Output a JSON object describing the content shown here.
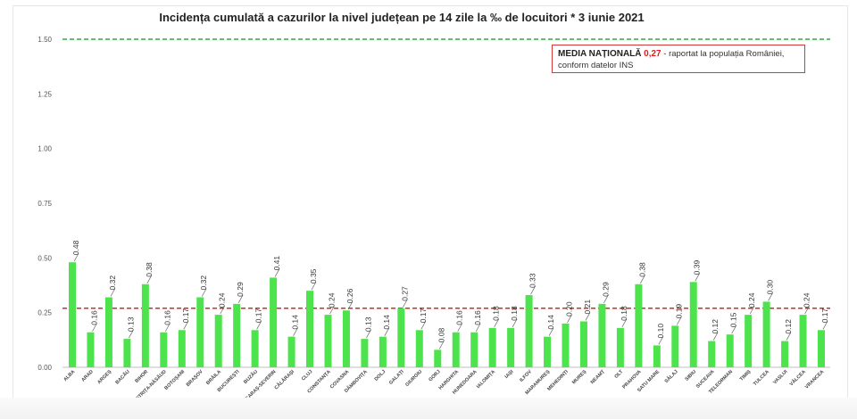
{
  "chart_data": {
    "type": "bar",
    "title": "Incidența cumulată a cazurilor la nivel județean pe 14 zile la ‰ de locuitori *  3 iunie 2021",
    "categories": [
      "ALBA",
      "ARAD",
      "ARGEȘ",
      "BACĂU",
      "BIHOR",
      "BISTRIȚA-NĂSĂUD",
      "BOTOȘANI",
      "BRAȘOV",
      "BRĂILA",
      "BUCUREȘTI",
      "BUZĂU",
      "CARAȘ-SEVERIN",
      "CĂLĂRAȘI",
      "CLUJ",
      "CONSTANȚA",
      "COVASNA",
      "DÂMBOVIȚA",
      "DOLJ",
      "GALAȚI",
      "GIURGIU",
      "GORJ",
      "HARGHITA",
      "HUNEDOARA",
      "IALOMIȚA",
      "IAȘI",
      "ILFOV",
      "MARAMUREȘ",
      "MEHEDINȚI",
      "MUREȘ",
      "NEAMȚ",
      "OLT",
      "PRAHOVA",
      "SATU MARE",
      "SĂLAJ",
      "SIBIU",
      "SUCEAVA",
      "TELEORMAN",
      "TIMIȘ",
      "TULCEA",
      "VASLUI",
      "VÂLCEA",
      "VRANCEA"
    ],
    "values": [
      0.48,
      0.16,
      0.32,
      0.13,
      0.38,
      0.16,
      0.17,
      0.32,
      0.24,
      0.29,
      0.17,
      0.41,
      0.14,
      0.35,
      0.24,
      0.26,
      0.13,
      0.14,
      0.27,
      0.17,
      0.08,
      0.16,
      0.16,
      0.18,
      0.18,
      0.33,
      0.14,
      0.2,
      0.21,
      0.29,
      0.18,
      0.38,
      0.1,
      0.19,
      0.39,
      0.12,
      0.15,
      0.24,
      0.3,
      0.12,
      0.24,
      0.17
    ],
    "value_labels": [
      "0.48",
      "0.16",
      "0.32",
      "0.13",
      "0.38",
      "0.16",
      "0.17",
      "0.32",
      "0.24",
      "0.29",
      "0.17",
      "0.41",
      "0.14",
      "0.35",
      "0.24",
      "0.26",
      "0.13",
      "0.14",
      "0.27",
      "0.17",
      "0.08",
      "0.16",
      "0.16",
      "0.18",
      "0.18",
      "0.33",
      "0.14",
      "0.20",
      "0.21",
      "0.29",
      "0.18",
      "0.38",
      "0.10",
      "0.19",
      "0.39",
      "0.12",
      "0.15",
      "0.24",
      "0.30",
      "0.12",
      "0.24",
      "0.17"
    ],
    "yticks": [
      "0.00",
      "0.25",
      "0.50",
      "0.75",
      "1.00",
      "1.25",
      "1.50"
    ],
    "ylim": [
      0,
      1.5
    ],
    "reference_lines": [
      {
        "value": 1.5,
        "color": "#2eaa4a",
        "style": "dashed"
      },
      {
        "value": 0.27,
        "color": "#d42a2a",
        "style": "dashed"
      }
    ],
    "bar_color": "#4ce34c",
    "xlabel": "",
    "ylabel": "",
    "grid": false
  },
  "legend": {
    "label": "MEDIA NAȚIONALĂ",
    "value": "0,27",
    "text_line1": " - raportat la populația României,",
    "text_line2": "conform datelor INS"
  }
}
